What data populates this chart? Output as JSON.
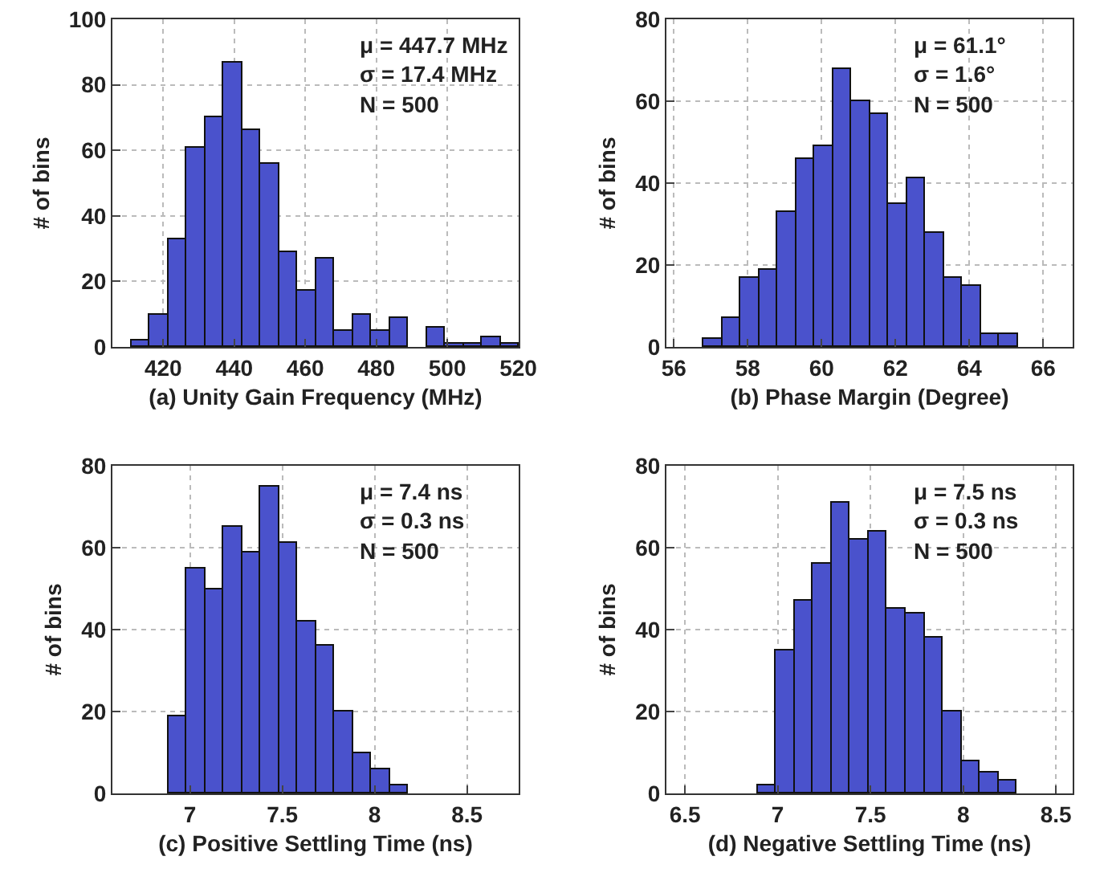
{
  "chart_data": [
    {
      "type": "histogram",
      "xlabel": "(a) Unity Gain Frequency (MHz)",
      "ylabel": "# of bins",
      "bins": [
        410.9,
        416.1,
        421.3,
        426.5,
        431.7,
        436.9,
        442.1,
        447.3,
        452.5,
        457.7,
        462.9,
        468.1,
        473.3,
        478.5,
        483.7,
        488.9,
        494.1,
        499.3,
        504.5,
        509.7,
        514.9,
        520.1
      ],
      "values": [
        2,
        10,
        33,
        61,
        70,
        87,
        66,
        56,
        29,
        17,
        27,
        5,
        10,
        5,
        9,
        0,
        6,
        1,
        1,
        3,
        1
      ],
      "color": "#4a52cc",
      "xlim": [
        405.7,
        520.1
      ],
      "xticks": [
        420,
        440,
        460,
        480,
        500,
        520
      ],
      "ylim": [
        0,
        100
      ],
      "yticks": [
        0,
        20,
        40,
        60,
        80,
        100
      ],
      "grid": true,
      "annotations": [
        "μ = 447.7 MHz",
        "σ = 17.4 MHz",
        "N = 500"
      ]
    },
    {
      "type": "histogram",
      "xlabel": "(b) Phase Margin (Degree)",
      "ylabel": "# of bins",
      "bins": [
        56.8,
        57.3,
        57.8,
        58.3,
        58.8,
        59.3,
        59.8,
        60.3,
        60.8,
        61.3,
        61.8,
        62.3,
        62.8,
        63.3,
        63.8,
        64.3,
        64.8,
        65.3
      ],
      "values": [
        2,
        7,
        17,
        19,
        33,
        46,
        49,
        68,
        60,
        57,
        35,
        41,
        28,
        17,
        15,
        3,
        3
      ],
      "color": "#4a52cc",
      "xlim": [
        55.8,
        66.8
      ],
      "xticks": [
        56,
        58,
        60,
        62,
        64,
        66
      ],
      "ylim": [
        0,
        80
      ],
      "yticks": [
        0,
        20,
        40,
        60,
        80
      ],
      "grid": true,
      "annotations": [
        "μ = 61.1°",
        "σ = 1.6°",
        "N = 500"
      ]
    },
    {
      "type": "histogram",
      "xlabel": "(c) Positive Settling Time (ns)",
      "ylabel": "# of bins",
      "bins": [
        6.88,
        6.98,
        7.08,
        7.18,
        7.28,
        7.38,
        7.48,
        7.58,
        7.68,
        7.78,
        7.88,
        7.98,
        8.08,
        8.18
      ],
      "values": [
        19,
        55,
        50,
        65,
        59,
        75,
        61,
        42,
        36,
        20,
        10,
        6,
        2
      ],
      "color": "#4a52cc",
      "xlim": [
        6.58,
        8.78
      ],
      "xticks": [
        7,
        7.5,
        8,
        8.5
      ],
      "ylim": [
        0,
        80
      ],
      "yticks": [
        0,
        20,
        40,
        60,
        80
      ],
      "grid": true,
      "annotations": [
        "μ = 7.4 ns",
        "σ = 0.3 ns",
        "N = 500"
      ]
    },
    {
      "type": "histogram",
      "xlabel": "(d) Negative Settling Time (ns)",
      "ylabel": "# of bins",
      "bins": [
        6.89,
        6.99,
        7.09,
        7.19,
        7.29,
        7.39,
        7.49,
        7.59,
        7.69,
        7.79,
        7.89,
        7.99,
        8.09,
        8.19,
        8.29
      ],
      "values": [
        2,
        35,
        47,
        56,
        71,
        62,
        64,
        45,
        44,
        38,
        20,
        8,
        5,
        3
      ],
      "color": "#4a52cc",
      "xlim": [
        6.4,
        8.59
      ],
      "xticks": [
        6.5,
        7,
        7.5,
        8,
        8.5
      ],
      "ylim": [
        0,
        80
      ],
      "yticks": [
        0,
        20,
        40,
        60,
        80
      ],
      "grid": true,
      "annotations": [
        "μ = 7.5 ns",
        "σ = 0.3 ns",
        "N = 500"
      ]
    }
  ]
}
